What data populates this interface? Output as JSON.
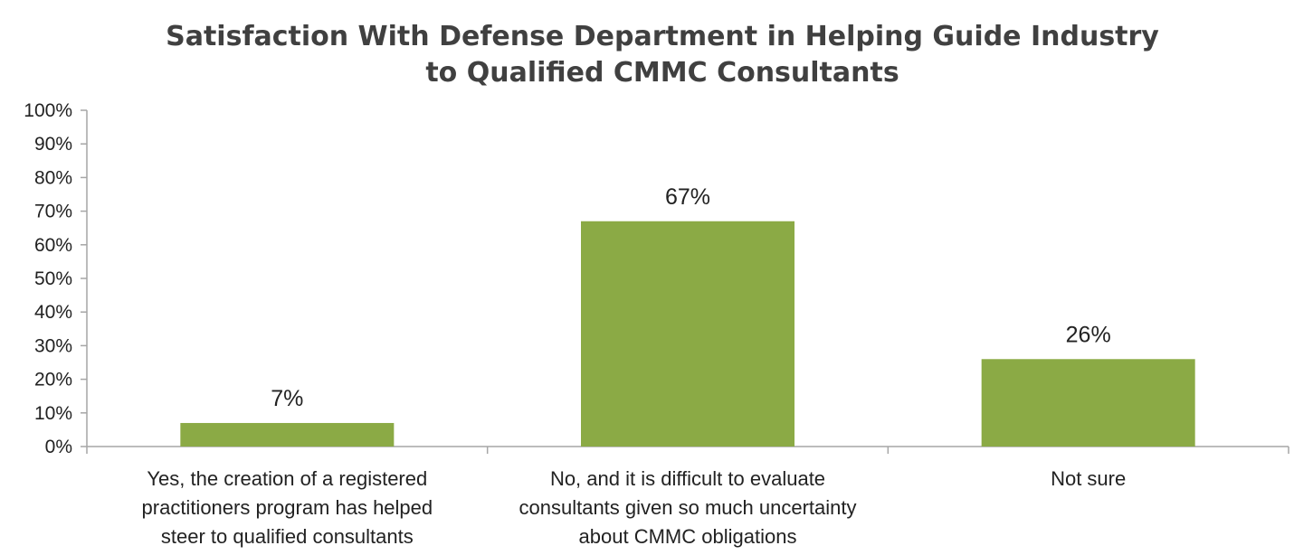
{
  "chart_data": {
    "type": "bar",
    "title_lines": [
      "Satisfaction With Defense Department in Helping Guide Industry",
      "to Qualified CMMC Consultants"
    ],
    "categories": [
      [
        "Yes, the creation of a registered",
        "practitioners program has helped",
        "steer to qualified consultants"
      ],
      [
        "No, and it is difficult to evaluate",
        "consultants given so much uncertainty",
        "about CMMC obligations"
      ],
      [
        "Not sure"
      ]
    ],
    "values": [
      7,
      67,
      26
    ],
    "value_labels": [
      "7%",
      "67%",
      "26%"
    ],
    "ylim": [
      0,
      100
    ],
    "y_ticks": [
      0,
      10,
      20,
      30,
      40,
      50,
      60,
      70,
      80,
      90,
      100
    ],
    "y_tick_labels": [
      "0%",
      "10%",
      "20%",
      "30%",
      "40%",
      "50%",
      "60%",
      "70%",
      "80%",
      "90%",
      "100%"
    ],
    "xlabel": "",
    "ylabel": "",
    "grid": false,
    "legend": "none",
    "bar_color": "#8BAA45",
    "axis_color": "#A6A6A6",
    "title_color": "#404040"
  }
}
